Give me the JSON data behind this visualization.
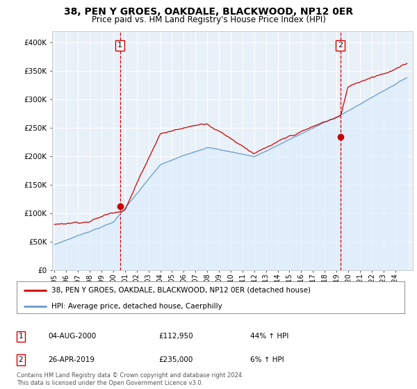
{
  "title": "38, PEN Y GROES, OAKDALE, BLACKWOOD, NP12 0ER",
  "subtitle": "Price paid vs. HM Land Registry's House Price Index (HPI)",
  "ylabel_ticks": [
    "£0",
    "£50K",
    "£100K",
    "£150K",
    "£200K",
    "£250K",
    "£300K",
    "£350K",
    "£400K"
  ],
  "ytick_vals": [
    0,
    50000,
    100000,
    150000,
    200000,
    250000,
    300000,
    350000,
    400000
  ],
  "ylim": [
    0,
    420000
  ],
  "xlim_start": 1994.8,
  "xlim_end": 2025.5,
  "sale1_date": 2000.58,
  "sale1_price": 112950,
  "sale2_date": 2019.32,
  "sale2_price": 235000,
  "legend_line1": "38, PEN Y GROES, OAKDALE, BLACKWOOD, NP12 0ER (detached house)",
  "legend_line2": "HPI: Average price, detached house, Caerphilly",
  "annotation1_date": "04-AUG-2000",
  "annotation1_price": "£112,950",
  "annotation1_hpi": "44% ↑ HPI",
  "annotation2_date": "26-APR-2019",
  "annotation2_price": "£235,000",
  "annotation2_hpi": "6% ↑ HPI",
  "footer": "Contains HM Land Registry data © Crown copyright and database right 2024.\nThis data is licensed under the Open Government Licence v3.0.",
  "line_color_red": "#cc0000",
  "line_color_blue": "#6699cc",
  "fill_color_blue": "#ddeeff",
  "vline_color": "#cc0000",
  "background_color": "#ffffff",
  "plot_bg_color": "#e8f0f8",
  "grid_color": "#ffffff"
}
